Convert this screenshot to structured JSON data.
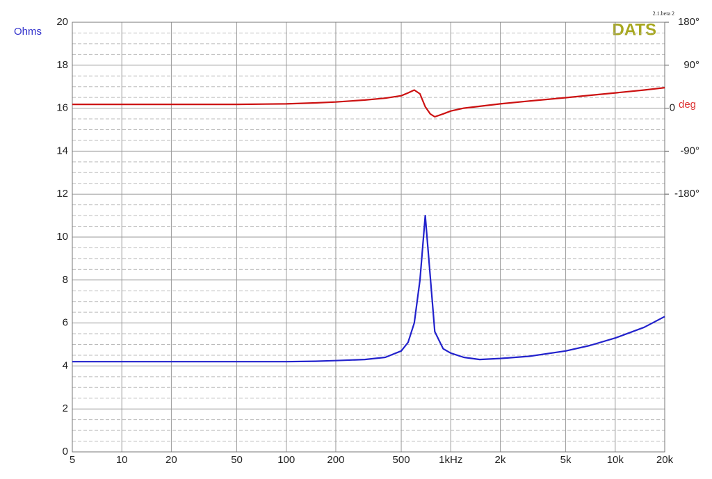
{
  "chart_data": {
    "type": "line",
    "y_label": "Ohms",
    "y2_label": "deg",
    "brand": "DATS",
    "version": "2.1.beta 2",
    "log_x": true,
    "grid": true,
    "xlim": [
      5,
      20000
    ],
    "xticks": [
      5,
      10,
      20,
      50,
      100,
      200,
      500,
      {
        "value": 1000,
        "label": "1kHz"
      },
      {
        "value": 2000,
        "label": "2k"
      },
      {
        "value": 5000,
        "label": "5k"
      },
      {
        "value": 10000,
        "label": "10k"
      },
      {
        "value": 20000,
        "label": "20k"
      }
    ],
    "ylim": [
      0,
      20
    ],
    "yticks": [
      0,
      2,
      4,
      6,
      8,
      10,
      12,
      14,
      16,
      18,
      20
    ],
    "y2lim": [
      -720,
      180
    ],
    "y2ticks": [
      {
        "value": 180,
        "label": "180°"
      },
      {
        "value": 90,
        "label": "90°"
      },
      0,
      {
        "value": -90,
        "label": "-90°"
      },
      {
        "value": -180,
        "label": "-180°"
      }
    ],
    "x": [
      5,
      10,
      20,
      50,
      100,
      150,
      200,
      300,
      400,
      500,
      550,
      600,
      650,
      700,
      750,
      800,
      900,
      1000,
      1200,
      1500,
      2000,
      3000,
      5000,
      7000,
      10000,
      15000,
      20000
    ],
    "series": [
      {
        "color": "#2222cc",
        "values": [
          4.2,
          4.2,
          4.2,
          4.2,
          4.2,
          4.22,
          4.25,
          4.3,
          4.4,
          4.7,
          5.1,
          6.0,
          8.0,
          11.0,
          8.2,
          5.6,
          4.8,
          4.6,
          4.4,
          4.3,
          4.35,
          4.45,
          4.7,
          4.95,
          5.3,
          5.8,
          6.3
        ]
      },
      {
        "color": "#cc1111",
        "axis": "y2",
        "values": [
          8,
          8,
          8,
          8,
          9,
          11,
          13,
          17,
          21,
          26,
          32,
          38,
          30,
          3,
          -12,
          -18,
          -12,
          -6,
          0,
          4,
          9,
          15,
          22,
          27,
          32,
          38,
          43
        ]
      }
    ]
  }
}
